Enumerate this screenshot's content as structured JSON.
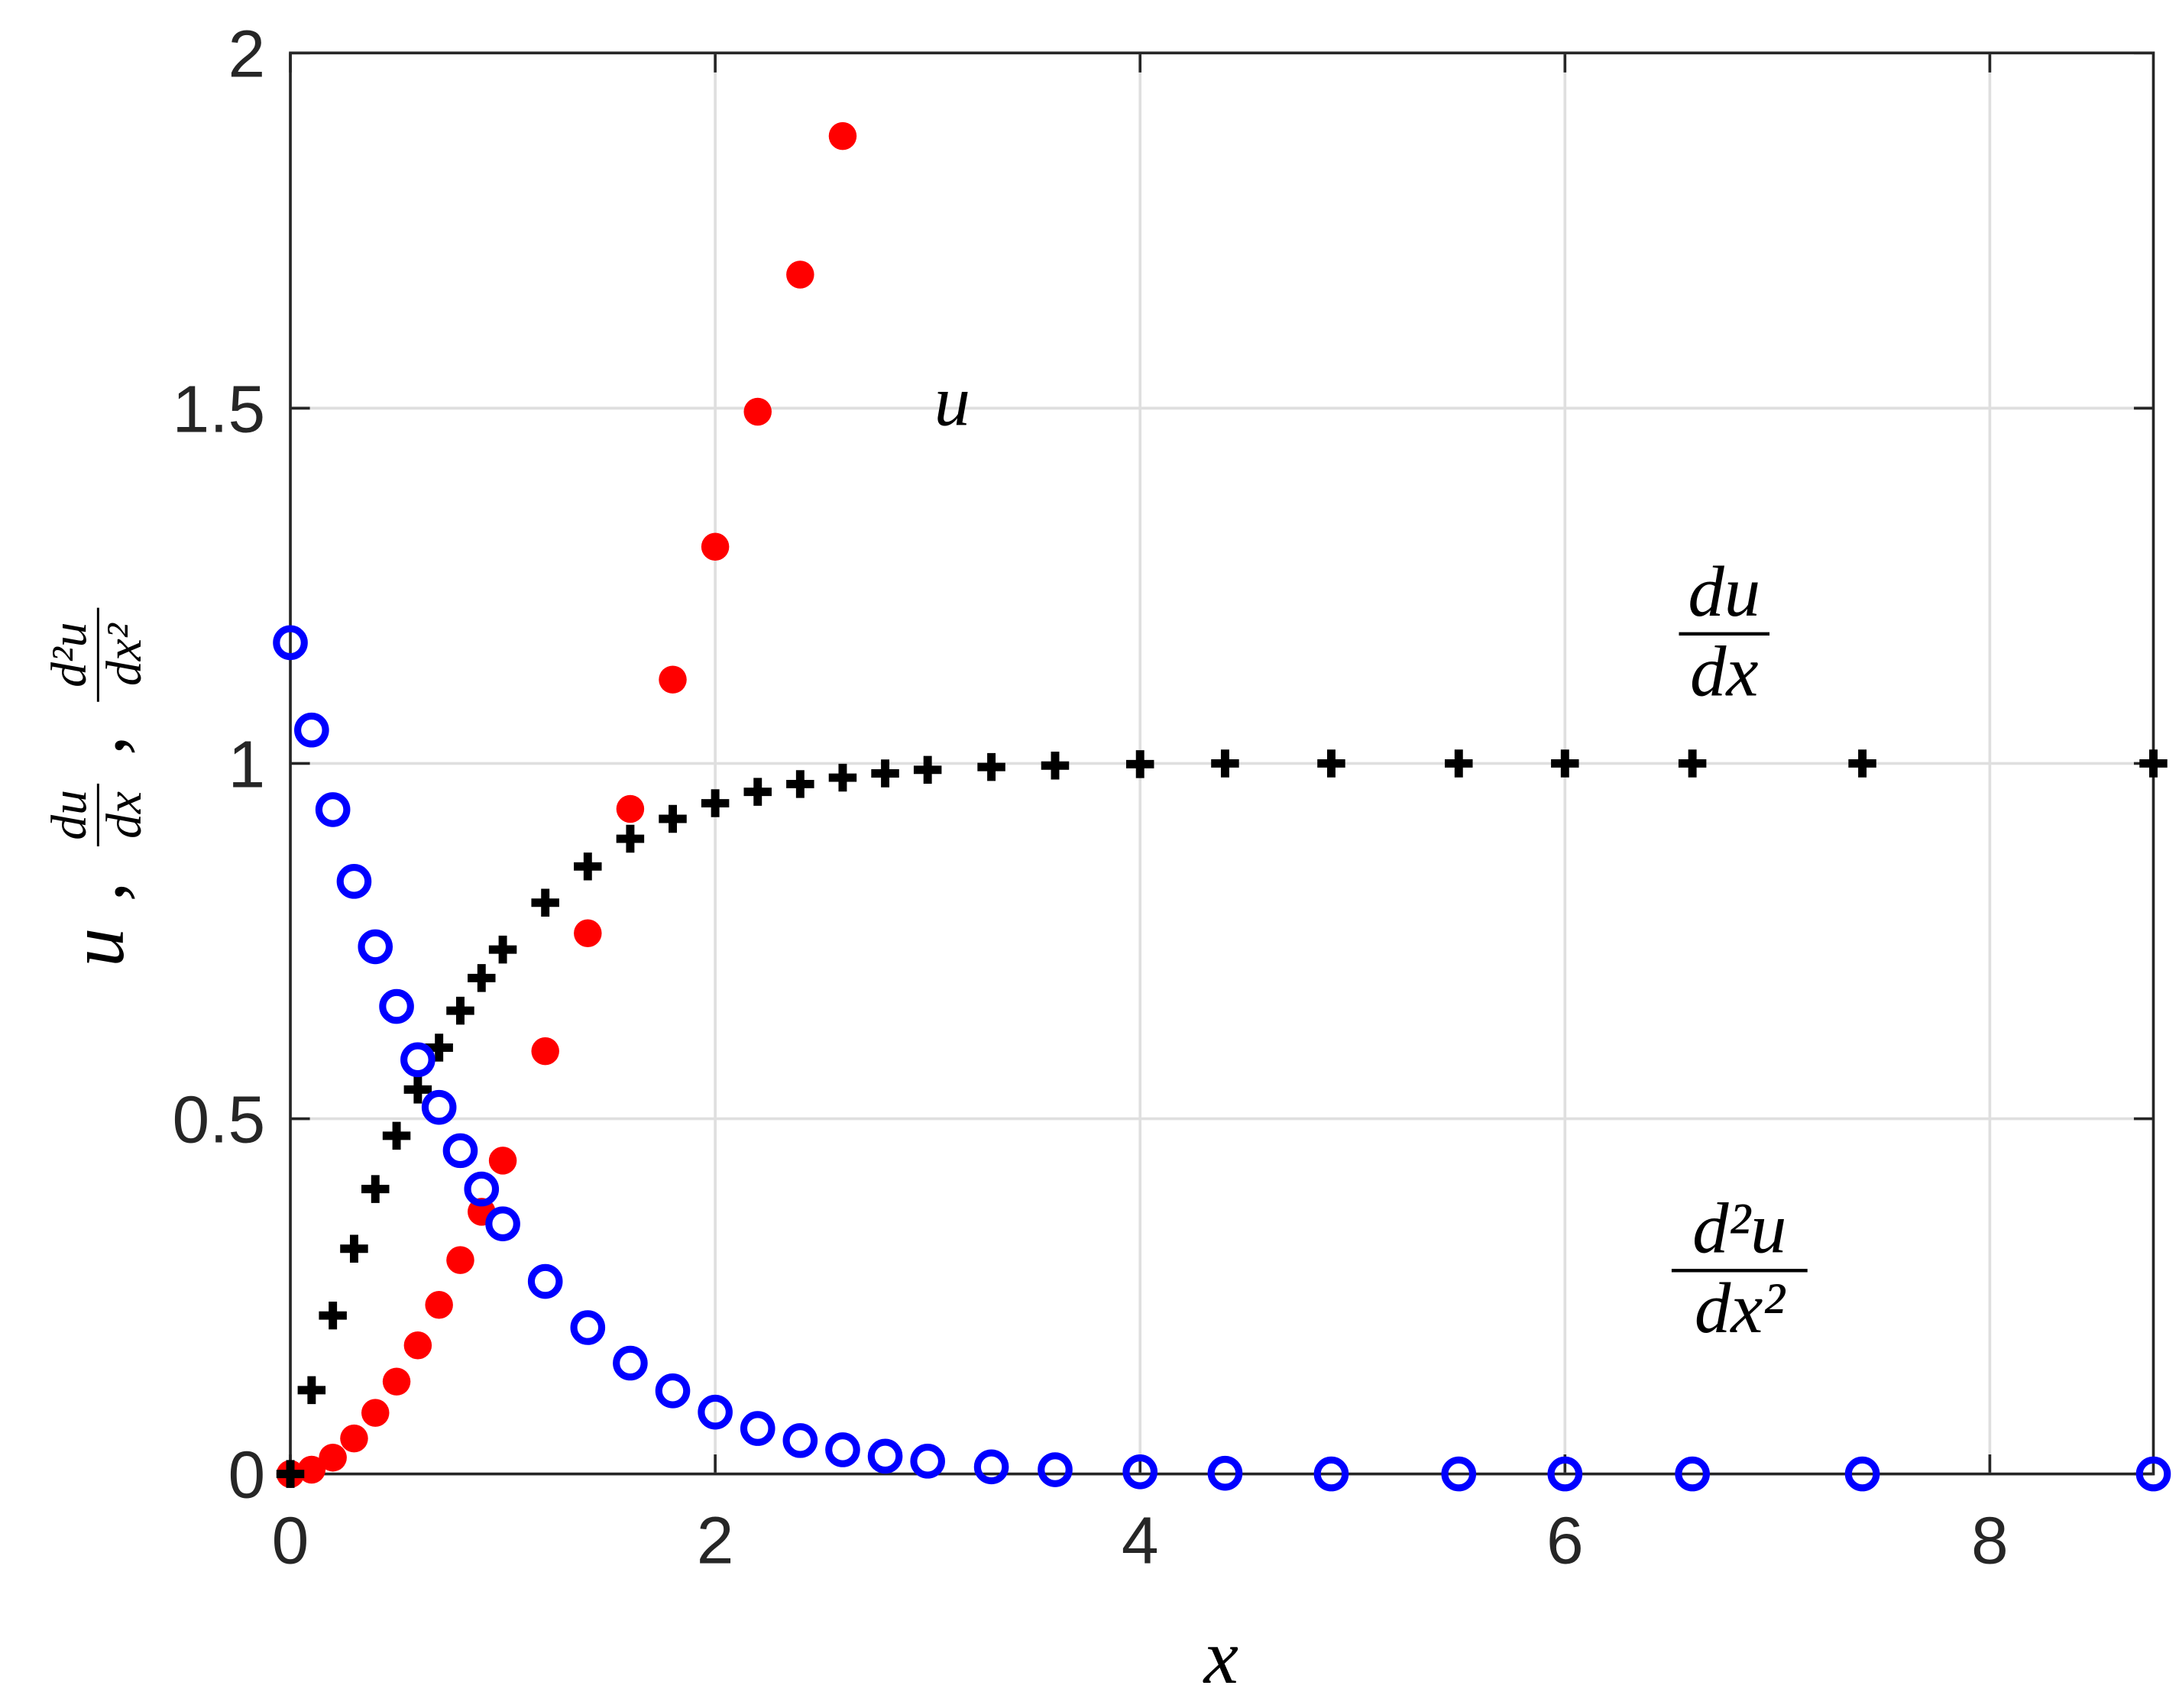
{
  "chart_data": {
    "type": "scatter",
    "x_label": "x",
    "y_label": {
      "first": "u",
      "separator": ",",
      "fractions": [
        {
          "numerator": "du",
          "denominator": "dx"
        },
        {
          "numerator": "d²u",
          "denominator": "dx²"
        }
      ]
    },
    "annotations": [
      {
        "text": "u"
      },
      {
        "numerator": "du",
        "denominator": "dx"
      },
      {
        "numerator": "d²u",
        "denominator": "dx²"
      }
    ],
    "x": [
      0,
      0.1,
      0.2,
      0.3,
      0.4,
      0.5,
      0.6,
      0.7,
      0.8,
      0.9,
      1.0,
      1.2,
      1.4,
      1.6,
      1.8,
      2.0,
      2.2,
      2.4,
      2.6,
      2.8,
      3.0,
      3.3,
      3.6,
      4.0,
      4.4,
      4.9,
      5.5,
      6.0,
      6.6,
      7.4,
      8.77
    ],
    "series": [
      {
        "color": "#ff0000",
        "marker": "filled-circle",
        "values": [
          0,
          0.006,
          0.023,
          0.05,
          0.086,
          0.13,
          0.181,
          0.238,
          0.301,
          0.369,
          0.441,
          0.595,
          0.761,
          0.936,
          1.118,
          1.305,
          1.495,
          1.688,
          1.883,
          null,
          null,
          null,
          null,
          null,
          null,
          null,
          null,
          null,
          null,
          null,
          null
        ]
      },
      {
        "color": "#000000",
        "marker": "plus",
        "values": [
          0,
          0.118,
          0.223,
          0.317,
          0.401,
          0.476,
          0.541,
          0.6,
          0.652,
          0.698,
          0.738,
          0.804,
          0.855,
          0.894,
          0.922,
          0.944,
          0.96,
          0.971,
          0.98,
          0.986,
          0.991,
          0.995,
          0.997,
          0.999,
          1,
          1,
          1,
          1,
          1,
          1,
          1
        ]
      },
      {
        "color": "#0000ff",
        "marker": "circle",
        "values": [
          1.17,
          1.047,
          0.935,
          0.834,
          0.742,
          0.658,
          0.583,
          0.516,
          0.455,
          0.401,
          0.352,
          0.271,
          0.206,
          0.156,
          0.117,
          0.087,
          0.064,
          0.047,
          0.034,
          0.025,
          0.018,
          0.01,
          0.006,
          0.003,
          0.001,
          0,
          0,
          0,
          0,
          0,
          0
        ]
      }
    ],
    "xlim": [
      0,
      8.77
    ],
    "ylim": [
      0,
      2
    ],
    "xticks": [
      0,
      2,
      4,
      6,
      8
    ],
    "yticks": [
      0,
      0.5,
      1,
      1.5,
      2
    ],
    "grid": true
  }
}
